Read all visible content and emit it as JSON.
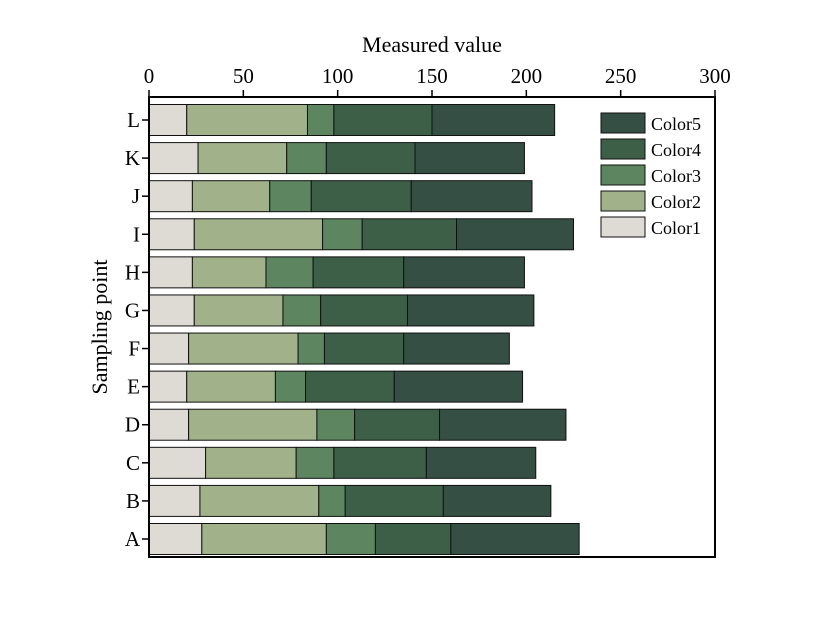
{
  "chart_data": {
    "type": "bar",
    "orientation": "horizontal",
    "stacked": true,
    "xlabel": "Measured value",
    "ylabel": "Sampling point",
    "xlim": [
      0,
      300
    ],
    "xticks": [
      "0",
      "50",
      "100",
      "150",
      "200",
      "250",
      "300"
    ],
    "grid": false,
    "legend_position": "top-right",
    "categories": [
      "A",
      "B",
      "C",
      "D",
      "E",
      "F",
      "G",
      "H",
      "I",
      "J",
      "K",
      "L"
    ],
    "series": [
      {
        "name": "Color1",
        "color": "#dedbd5",
        "values": [
          28,
          27,
          30,
          21,
          20,
          21,
          24,
          23,
          24,
          23,
          26,
          20
        ]
      },
      {
        "name": "Color2",
        "color": "#a1b28b",
        "values": [
          66,
          63,
          48,
          68,
          47,
          58,
          47,
          39,
          68,
          41,
          47,
          64
        ]
      },
      {
        "name": "Color3",
        "color": "#5c8560",
        "values": [
          26,
          14,
          20,
          20,
          16,
          14,
          20,
          25,
          21,
          22,
          21,
          14
        ]
      },
      {
        "name": "Color4",
        "color": "#3d5f48",
        "values": [
          40,
          52,
          49,
          45,
          47,
          42,
          46,
          48,
          50,
          53,
          47,
          52
        ]
      },
      {
        "name": "Color5",
        "color": "#354f45",
        "values": [
          68,
          57,
          58,
          67,
          68,
          56,
          67,
          64,
          62,
          64,
          58,
          65
        ]
      }
    ]
  }
}
